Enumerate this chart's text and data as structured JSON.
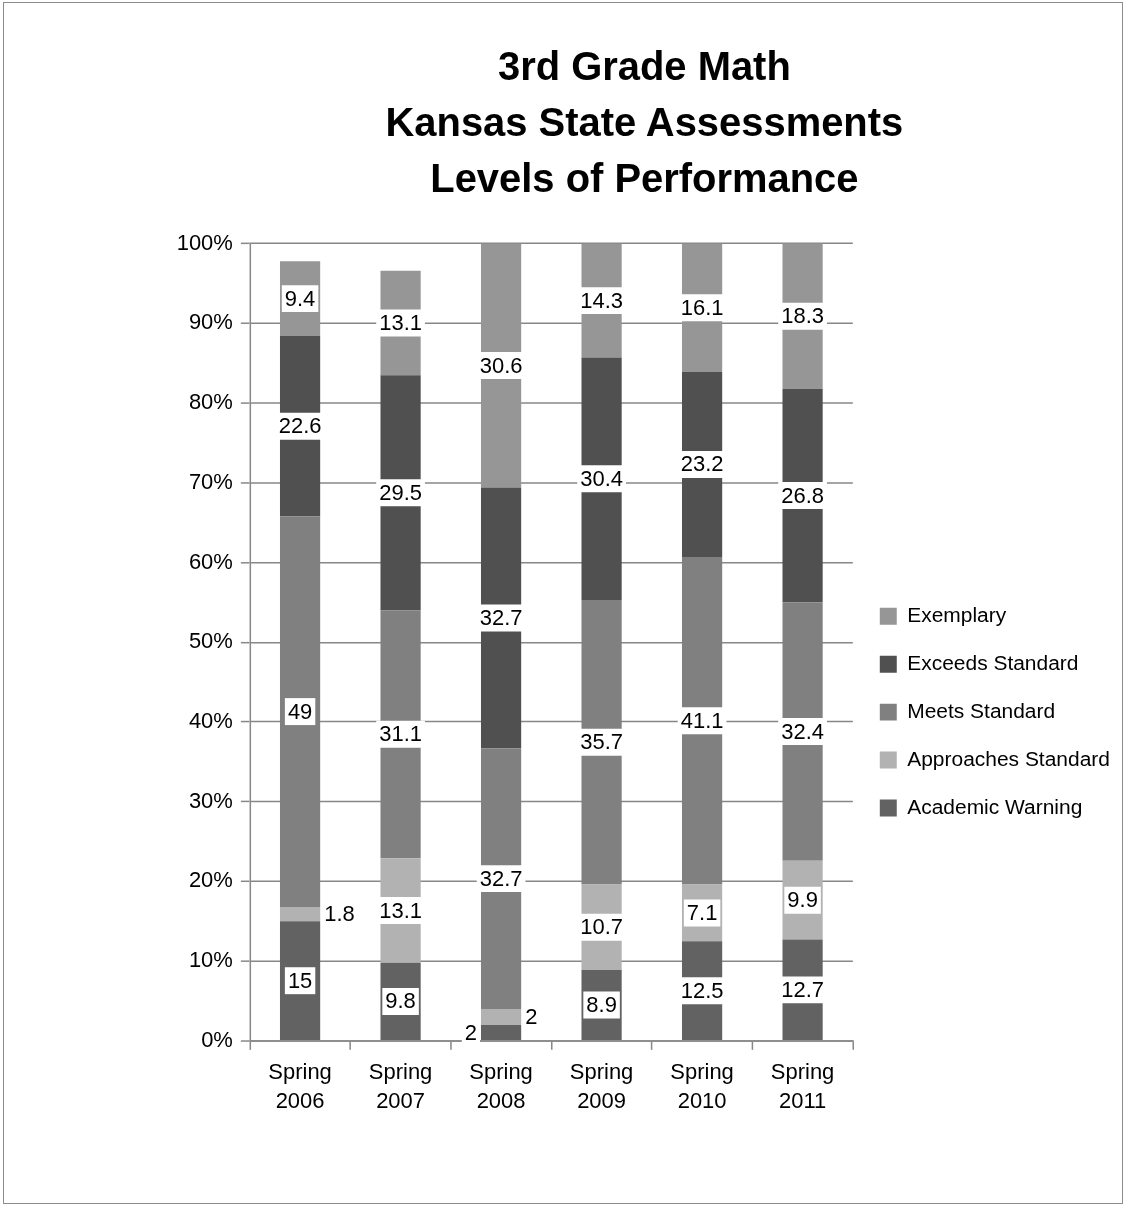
{
  "chart_data": {
    "type": "bar",
    "title": "3rd Grade Math\nKansas State Assessments\nLevels of Performance",
    "categories": [
      "Spring 2006",
      "Spring 2007",
      "Spring 2008",
      "Spring 2009",
      "Spring 2010",
      "Spring 2011"
    ],
    "series": [
      {
        "name": "Academic Warning",
        "color": "#626262",
        "values": [
          15,
          9.8,
          2,
          8.9,
          12.5,
          12.7
        ]
      },
      {
        "name": "Approaches Standard",
        "color": "#b2b2b2",
        "values": [
          1.8,
          13.1,
          2,
          10.7,
          7.1,
          9.9
        ]
      },
      {
        "name": "Meets Standard",
        "color": "#808080",
        "values": [
          49,
          31.1,
          32.7,
          35.7,
          41.1,
          32.4
        ]
      },
      {
        "name": "Exceeds Standard",
        "color": "#505050",
        "values": [
          22.6,
          29.5,
          32.7,
          30.4,
          23.2,
          26.8
        ]
      },
      {
        "name": "Exemplary",
        "color": "#969696",
        "values": [
          9.4,
          13.1,
          30.6,
          14.3,
          16.1,
          18.3
        ]
      }
    ],
    "stacked": true,
    "data_labels": true,
    "legend": "right",
    "grid": "y",
    "ylim": [
      0,
      100
    ],
    "yticks": [
      {
        "value": 0,
        "label": "0%"
      },
      {
        "value": 10,
        "label": "10%"
      },
      {
        "value": 20,
        "label": "20%"
      },
      {
        "value": 30,
        "label": "30%"
      },
      {
        "value": 40,
        "label": "40%"
      },
      {
        "value": 50,
        "label": "50%"
      },
      {
        "value": 60,
        "label": "60%"
      },
      {
        "value": 70,
        "label": "70%"
      },
      {
        "value": 80,
        "label": "80%"
      },
      {
        "value": 90,
        "label": "90%"
      },
      {
        "value": 100,
        "label": "100%"
      }
    ]
  }
}
